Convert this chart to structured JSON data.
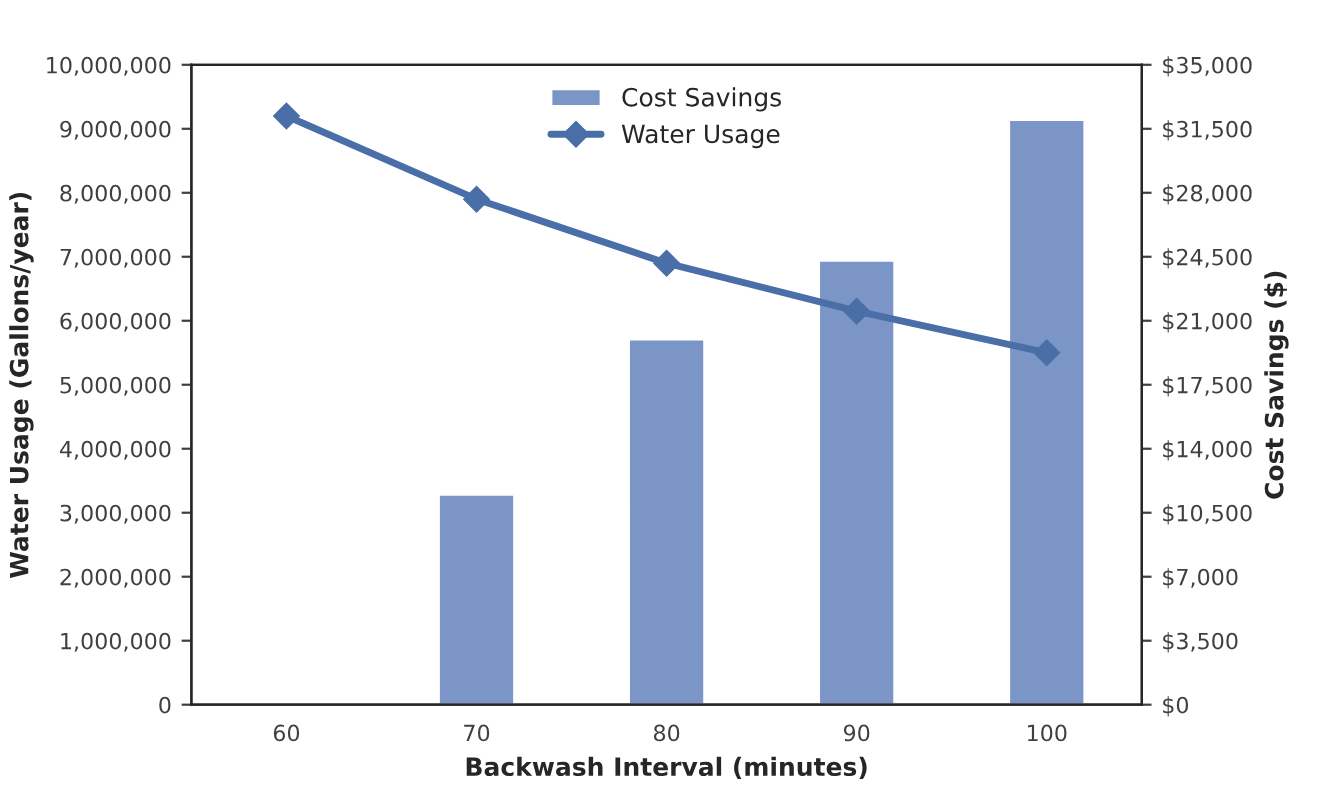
{
  "chart_data": {
    "type": "bar",
    "xlabel": "Backwash Interval (minutes)",
    "ylabel": "Water Usage (Gallons/year)",
    "y2label": "Cost Savings ($)",
    "categories": [
      "60",
      "70",
      "80",
      "90",
      "100"
    ],
    "series": [
      {
        "name": "Cost Savings",
        "axis": "y2",
        "color": "#7b96c6",
        "values": [
          null,
          11500,
          20000,
          24300,
          32000
        ]
      },
      {
        "name": "Water Usage",
        "type": "line",
        "axis": "y",
        "color": "#4a6fa8",
        "marker": "diamond",
        "values": [
          9200000,
          7900000,
          6900000,
          6150000,
          5500000
        ]
      }
    ],
    "ylim": [
      0,
      10000000
    ],
    "yticks": [
      {
        "value": 0,
        "label": "0"
      },
      {
        "value": 1000000,
        "label": "1,000,000"
      },
      {
        "value": 2000000,
        "label": "2,000,000"
      },
      {
        "value": 3000000,
        "label": "3,000,000"
      },
      {
        "value": 4000000,
        "label": "4,000,000"
      },
      {
        "value": 5000000,
        "label": "5,000,000"
      },
      {
        "value": 6000000,
        "label": "6,000,000"
      },
      {
        "value": 7000000,
        "label": "7,000,000"
      },
      {
        "value": 8000000,
        "label": "8,000,000"
      },
      {
        "value": 9000000,
        "label": "9,000,000"
      },
      {
        "value": 10000000,
        "label": "10,000,000"
      }
    ],
    "y2lim": [
      0,
      35000
    ],
    "y2ticks": [
      {
        "value": 0,
        "label": "$0"
      },
      {
        "value": 3500,
        "label": "$3,500"
      },
      {
        "value": 7000,
        "label": "$7,000"
      },
      {
        "value": 10500,
        "label": "$10,500"
      },
      {
        "value": 14000,
        "label": "$14,000"
      },
      {
        "value": 17500,
        "label": "$17,500"
      },
      {
        "value": 21000,
        "label": "$21,000"
      },
      {
        "value": 24500,
        "label": "$24,500"
      },
      {
        "value": 28000,
        "label": "$28,000"
      },
      {
        "value": 31500,
        "label": "$31,500"
      },
      {
        "value": 35000,
        "label": "$35,000"
      }
    ],
    "legend": "top",
    "grid": false
  }
}
